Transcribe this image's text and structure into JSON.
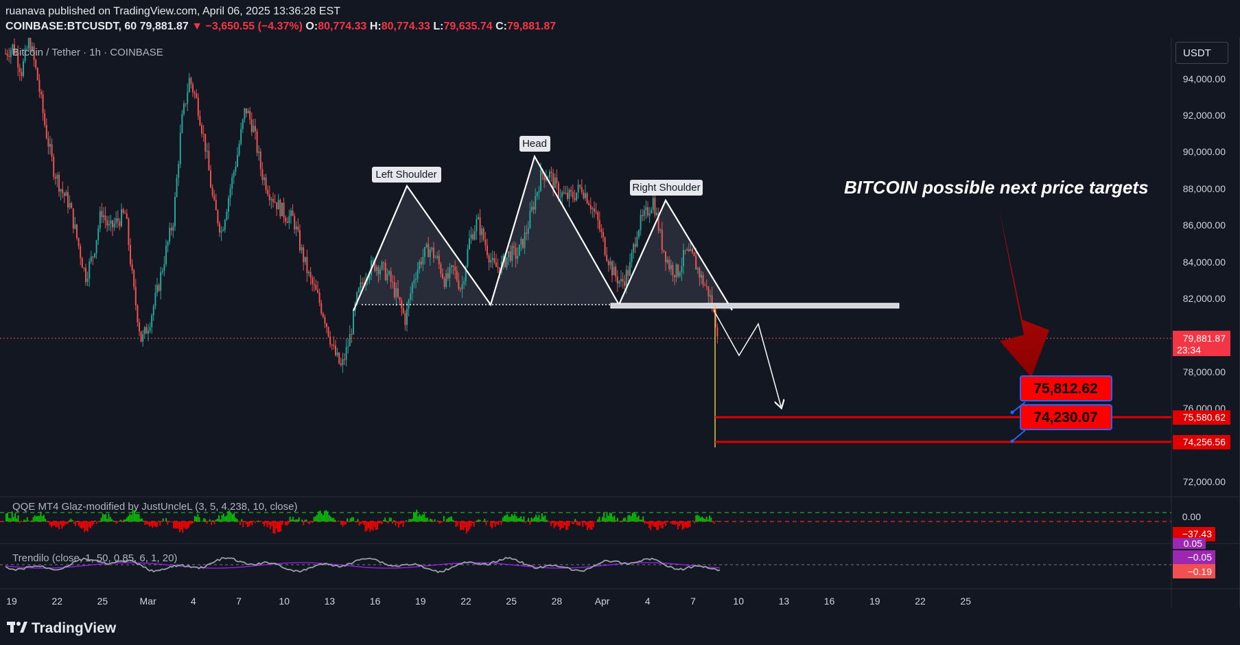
{
  "header": {
    "published": "ruanava published on TradingView.com, April 06, 2025 13:36:28 EST",
    "symbol": "COINBASE:BTCUSDT, 60",
    "last": "79,881.87",
    "change": "▼ −3,650.55 (−4.37%)",
    "open_label": "O:",
    "open": "80,774.33",
    "high_label": "H:",
    "high": "80,774.33",
    "low_label": "L:",
    "low": "79,635.74",
    "close_label": "C:",
    "close": "79,881.87"
  },
  "legend": {
    "main": "Bitcoin / Tether · 1h · COINBASE",
    "qqe": "QQE MT4 Glaz-modified by JustUncleL (3, 5, 4.238, 10, close)",
    "trendilo": "Trendilo (close, 1, 50, 0.85, 6, 1, 20)"
  },
  "currency_button": "USDT",
  "annotations": {
    "left_shoulder": "Left Shoulder",
    "head": "Head",
    "right_shoulder": "Right Shoulder",
    "headline": "BITCOIN possible next price targets",
    "target1": "75,812.62",
    "target2": "74,230.07"
  },
  "price_axis": {
    "ticks": [
      "94,000.00",
      "92,000.00",
      "90,000.00",
      "88,000.00",
      "86,000.00",
      "84,000.00",
      "82,000.00",
      "78,000.00",
      "76,000.00",
      "72,000.00"
    ],
    "current_price": "79,881.87",
    "countdown": "23:34",
    "level1": "75,580.62",
    "level2": "74,256.56",
    "qqe_zero": "0.00",
    "qqe_value": "−37.43",
    "trendilo_top": "0.05",
    "trendilo_mid": "−0.05",
    "trendilo_value": "−0.19"
  },
  "time_axis": [
    "19",
    "22",
    "25",
    "Mar",
    "4",
    "7",
    "10",
    "13",
    "16",
    "19",
    "22",
    "25",
    "28",
    "Apr",
    "4",
    "7",
    "10",
    "13",
    "16",
    "19",
    "22",
    "25"
  ],
  "footer": {
    "brand": "TradingView"
  },
  "colors": {
    "bg": "#131722",
    "up": "#26a69a",
    "down": "#ef5350",
    "red": "#ff0000",
    "blue": "#2962ff",
    "qqe_up": "#00c800",
    "qqe_down": "#ff0000",
    "trendilo": "#a020f0"
  },
  "chart_data": {
    "type": "line",
    "series": [
      {
        "values": [
          95200,
          95600,
          94200,
          96000,
          93800,
          91000,
          88800,
          87600,
          86800,
          84800,
          82800,
          84100,
          86500,
          85400,
          85900,
          86300,
          82100,
          79200,
          80300,
          82000,
          84100,
          86000,
          91300,
          93800,
          92400,
          90000,
          86800,
          85300,
          87500,
          89600,
          92200,
          91000,
          88600,
          87500,
          86800,
          86200,
          86000,
          84200,
          82700,
          81700,
          80400,
          78700,
          77700,
          79300,
          81700,
          82900,
          83500,
          83300,
          82700,
          81600,
          80400,
          82700,
          83800,
          84400,
          83700,
          82500,
          83200,
          82100,
          84800,
          85900,
          84600,
          83300,
          83400,
          84100,
          84000,
          85100,
          86800,
          88500,
          88500,
          87600,
          87200,
          87300,
          87800,
          87000,
          85900,
          84300,
          83000,
          82400,
          83200,
          85500,
          86200,
          87100,
          84700,
          83400,
          83000,
          84100,
          83800,
          82700,
          81800,
          79900
        ]
      }
    ],
    "y_range": [
      70800,
      95800
    ],
    "pattern": "head and shoulders",
    "neckline": 81500,
    "targets": [
      75812.62,
      74230.07
    ],
    "levels": [
      75580.62,
      74256.56
    ],
    "current_price": 79881.87
  }
}
